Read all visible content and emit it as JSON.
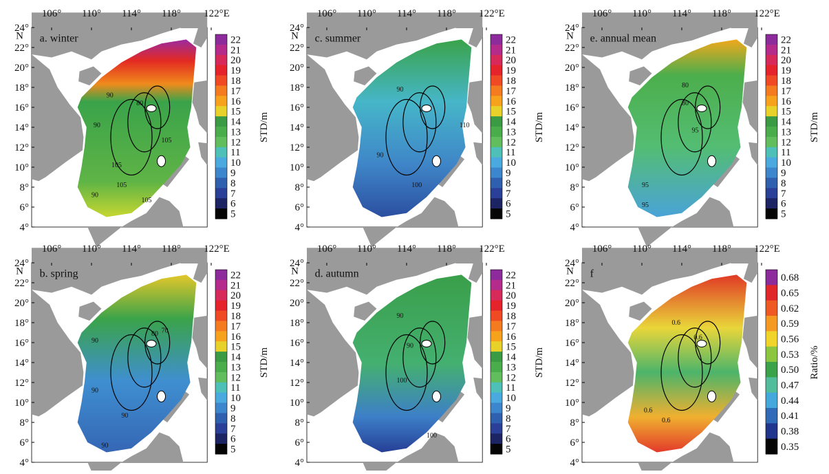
{
  "lon_labels": [
    "106°",
    "110°",
    "114°",
    "118°",
    "122°E"
  ],
  "lat_labels": [
    "24°",
    "22°",
    "20°",
    "18°",
    "16°",
    "14°",
    "12°",
    "10°",
    "8°",
    "6°",
    "4°"
  ],
  "lat_unit": "N",
  "std_ticks": [
    "22",
    "21",
    "20",
    "19",
    "18",
    "17",
    "16",
    "15",
    "14",
    "13",
    "12",
    "11",
    "10",
    "9",
    "8",
    "7",
    "6",
    "5"
  ],
  "std_title": "STD/m",
  "panels": [
    {
      "label": "a. winter",
      "contours": [
        "90",
        "105",
        "80",
        "90",
        "105",
        "105",
        "90",
        "105"
      ]
    },
    {
      "label": "c. summer",
      "contours": [
        "90",
        "110",
        "90",
        "100"
      ]
    },
    {
      "label": "e. annual mean",
      "contours": [
        "80",
        "80",
        "95",
        "95",
        "95"
      ]
    },
    {
      "label": "b. spring",
      "contours": [
        "70",
        "80",
        "90",
        "90",
        "90",
        "90"
      ]
    },
    {
      "label": "d. autumn",
      "contours": [
        "90",
        "90",
        "100",
        "100"
      ]
    },
    {
      "label": "f",
      "contours": [
        "0.6",
        "0.6",
        "0.6",
        "0.6"
      ],
      "colorbar_ticks": [
        "0.68",
        "0.65",
        "0.62",
        "0.59",
        "0.56",
        "0.53",
        "0.50",
        "0.47",
        "0.44",
        "0.41",
        "0.38",
        "0.35"
      ],
      "colorbar_title": "Ratio/%"
    }
  ]
}
